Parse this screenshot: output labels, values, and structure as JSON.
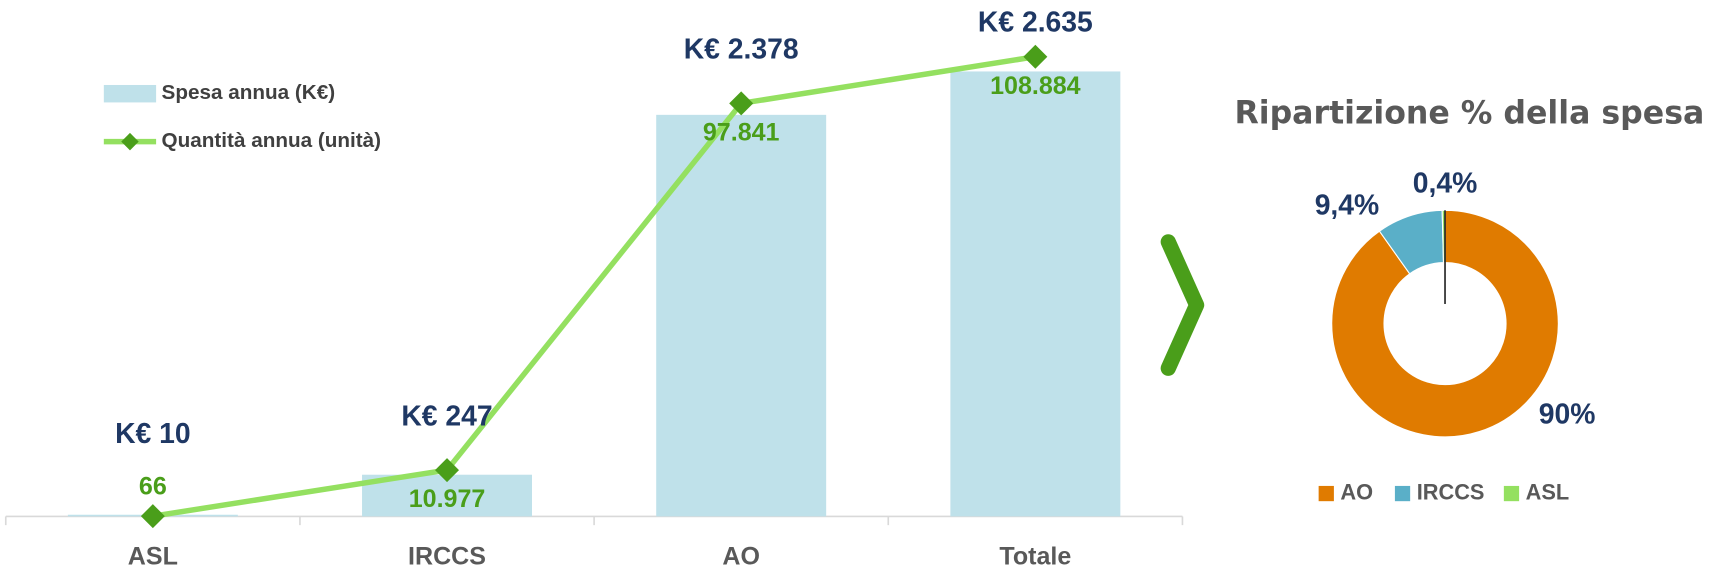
{
  "chart_data": [
    {
      "type": "bar-line",
      "categories": [
        "ASL",
        "IRCCS",
        "AO",
        "Totale"
      ],
      "series": [
        {
          "name": "Spesa annua (K€)",
          "type": "bar",
          "color": "#bfe1ea",
          "label_color": "#1f3864",
          "values": [
            10,
            247,
            2378,
            2635
          ],
          "value_labels": [
            "K€ 10",
            "K€ 247",
            "K€ 2.378",
            "K€ 2.635"
          ]
        },
        {
          "name": "Quantità annua (unità)",
          "type": "line",
          "axis": "y2",
          "color": "#94e060",
          "marker_color": "#4a9e1a",
          "label_color": "#4a9e1a",
          "values": [
            66,
            10977,
            97841,
            108884
          ],
          "value_labels": [
            "66",
            "10.977",
            "97.841",
            "108.884"
          ]
        }
      ],
      "ylim": [
        0,
        2800
      ],
      "y2lim": [
        0,
        112000
      ],
      "legend": "upper left"
    },
    {
      "type": "donut",
      "title": "Ripartizione % della spesa",
      "categories": [
        "AO",
        "IRCCS",
        "ASL"
      ],
      "values": [
        90,
        9.4,
        0.4
      ],
      "value_labels": [
        "90%",
        "9,4%",
        "0,4%"
      ],
      "colors": [
        "#e07b00",
        "#5aafc8",
        "#94e060"
      ],
      "legend": "bottom"
    }
  ]
}
